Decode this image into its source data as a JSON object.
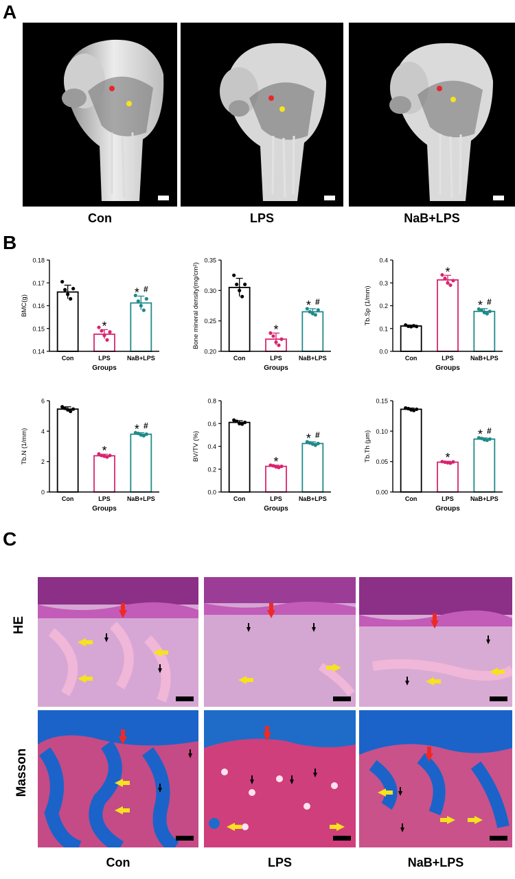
{
  "panel_labels": {
    "a": "A",
    "b": "B",
    "c": "C"
  },
  "panel_a": {
    "captions": [
      "Con",
      "LPS",
      "NaB+LPS"
    ],
    "markers": {
      "red": "#e8262b",
      "yellow": "#f5e51b"
    }
  },
  "panel_c": {
    "row_labels": [
      "HE",
      "Masson"
    ],
    "captions": [
      "Con",
      "LPS",
      "NaB+LPS"
    ],
    "arrow_colors": {
      "red": "#ee2a24",
      "yellow": "#f6e21e",
      "black": "#000000"
    }
  },
  "colors": {
    "con": "#000000",
    "lps": "#d8246e",
    "nab": "#1f8a8a"
  },
  "chart_data": [
    {
      "type": "bar",
      "ylabel": "BMC(g)",
      "xlabel": "Groups",
      "categories": [
        "Con",
        "LPS",
        "NaB+LPS"
      ],
      "ylim": [
        0.14,
        0.18
      ],
      "yticks": [
        "0.14",
        "0.15",
        "0.16",
        "0.17",
        "0.18"
      ],
      "values": [
        0.166,
        0.1475,
        0.1612
      ],
      "errors": [
        0.003,
        0.002,
        0.003
      ],
      "points": [
        [
          0.1705,
          0.167,
          0.165,
          0.163,
          0.1675
        ],
        [
          0.1505,
          0.149,
          0.147,
          0.145,
          0.1485
        ],
        [
          0.1645,
          0.162,
          0.16,
          0.158,
          0.163
        ]
      ],
      "annotations": [
        "",
        "*",
        "*#"
      ]
    },
    {
      "type": "bar",
      "ylabel": "Bone mineral density(mg/cm²)",
      "xlabel": "Groups",
      "categories": [
        "Con",
        "LPS",
        "NaB+LPS"
      ],
      "ylim": [
        0.2,
        0.35
      ],
      "yticks": [
        "0.20",
        "0.25",
        "0.30",
        "0.35"
      ],
      "values": [
        0.305,
        0.22,
        0.265
      ],
      "errors": [
        0.015,
        0.01,
        0.005
      ],
      "points": [
        [
          0.325,
          0.31,
          0.3,
          0.29,
          0.31
        ],
        [
          0.23,
          0.225,
          0.215,
          0.21,
          0.22
        ],
        [
          0.27,
          0.265,
          0.262,
          0.26,
          0.268
        ]
      ],
      "annotations": [
        "",
        "*",
        "*#"
      ]
    },
    {
      "type": "bar",
      "ylabel": "Tb.Sp (1/mm)",
      "xlabel": "Groups",
      "categories": [
        "Con",
        "LPS",
        "NaB+LPS"
      ],
      "ylim": [
        0,
        0.4
      ],
      "yticks": [
        "0.0",
        "0.1",
        "0.2",
        "0.3",
        "0.4"
      ],
      "values": [
        0.111,
        0.313,
        0.175
      ],
      "errors": [
        0.004,
        0.02,
        0.012
      ],
      "points": [
        [
          0.115,
          0.11,
          0.108,
          0.112,
          0.109
        ],
        [
          0.335,
          0.32,
          0.3,
          0.29,
          0.31
        ],
        [
          0.185,
          0.18,
          0.17,
          0.165,
          0.175
        ]
      ],
      "annotations": [
        "",
        "*",
        "*#"
      ]
    },
    {
      "type": "bar",
      "ylabel": "Tb.N (1/mm)",
      "xlabel": "Groups",
      "categories": [
        "Con",
        "LPS",
        "NaB+LPS"
      ],
      "ylim": [
        0,
        6
      ],
      "yticks": [
        "0",
        "2",
        "4",
        "6"
      ],
      "values": [
        5.45,
        2.38,
        3.8
      ],
      "errors": [
        0.15,
        0.1,
        0.1
      ],
      "points": [
        [
          5.6,
          5.5,
          5.4,
          5.3,
          5.45
        ],
        [
          2.5,
          2.4,
          2.35,
          2.3,
          2.4
        ],
        [
          3.9,
          3.85,
          3.75,
          3.7,
          3.8
        ]
      ],
      "annotations": [
        "",
        "*",
        "*#"
      ]
    },
    {
      "type": "bar",
      "ylabel": "BV/TV (%)",
      "xlabel": "Groups",
      "categories": [
        "Con",
        "LPS",
        "NaB+LPS"
      ],
      "ylim": [
        0,
        0.8
      ],
      "yticks": [
        "0.0",
        "0.2",
        "0.4",
        "0.6",
        "0.8"
      ],
      "values": [
        0.61,
        0.225,
        0.425
      ],
      "errors": [
        0.015,
        0.01,
        0.015
      ],
      "points": [
        [
          0.63,
          0.62,
          0.6,
          0.595,
          0.61
        ],
        [
          0.235,
          0.23,
          0.22,
          0.215,
          0.225
        ],
        [
          0.44,
          0.43,
          0.42,
          0.41,
          0.425
        ]
      ],
      "annotations": [
        "",
        "*",
        "*#"
      ]
    },
    {
      "type": "bar",
      "ylabel": "Tb.Th (μm)",
      "xlabel": "Groups",
      "categories": [
        "Con",
        "LPS",
        "NaB+LPS"
      ],
      "ylim": [
        0,
        0.15
      ],
      "yticks": [
        "0.00",
        "0.05",
        "0.10",
        "0.15"
      ],
      "values": [
        0.136,
        0.049,
        0.087
      ],
      "errors": [
        0.002,
        0.0015,
        0.002
      ],
      "points": [
        [
          0.138,
          0.137,
          0.135,
          0.134,
          0.136
        ],
        [
          0.05,
          0.049,
          0.048,
          0.0475,
          0.0495
        ],
        [
          0.089,
          0.088,
          0.086,
          0.085,
          0.087
        ]
      ],
      "annotations": [
        "",
        "*",
        "*#"
      ]
    }
  ]
}
